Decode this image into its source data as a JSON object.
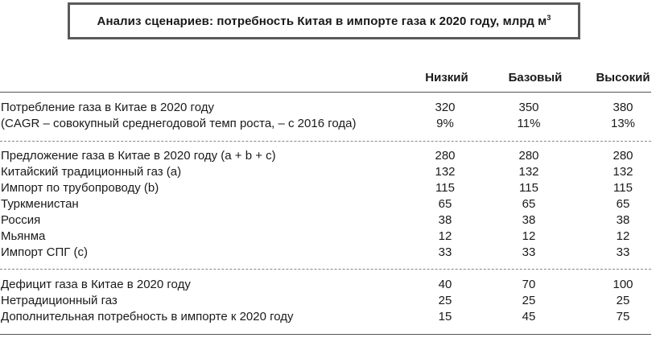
{
  "title": {
    "main": "Анализ сценариев: потребность Китая в импорте газа к 2020 году, млрд м",
    "sup": "3"
  },
  "columns": [
    "Низкий",
    "Базовый",
    "Высокий"
  ],
  "rows": [
    {
      "label": "Потребление газа в Китае в 2020 году",
      "values": [
        "320",
        "350",
        "380"
      ]
    },
    {
      "label": "(CAGR – совокупный среднегодовой темп роста, – с 2016 года)",
      "values": [
        "9%",
        "11%",
        "13%"
      ]
    },
    {
      "label": "Предложение газа в Китае в 2020 году (a + b + c)",
      "values": [
        "280",
        "280",
        "280"
      ]
    },
    {
      "label": "Китайский традиционный газ (a)",
      "values": [
        "132",
        "132",
        "132"
      ]
    },
    {
      "label": "Импорт по трубопроводу (b)",
      "values": [
        "115",
        "115",
        "115"
      ]
    },
    {
      "label": "Туркменистан",
      "values": [
        "65",
        "65",
        "65"
      ]
    },
    {
      "label": "Россия",
      "values": [
        "38",
        "38",
        "38"
      ]
    },
    {
      "label": "Мьянма",
      "values": [
        "12",
        "12",
        "12"
      ]
    },
    {
      "label": "Импорт СПГ (c)",
      "values": [
        "33",
        "33",
        "33"
      ]
    },
    {
      "label": "Дефицит газа в Китае в 2020 году",
      "values": [
        "40",
        "70",
        "100"
      ]
    },
    {
      "label": "Нетрадиционный газ",
      "values": [
        "25",
        "25",
        "25"
      ]
    },
    {
      "label": "Дополнительная потребность в импорте к 2020 году",
      "values": [
        "15",
        "45",
        "75"
      ]
    }
  ]
}
